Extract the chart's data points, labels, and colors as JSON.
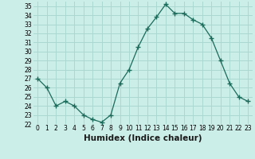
{
  "x": [
    0,
    1,
    2,
    3,
    4,
    5,
    6,
    7,
    8,
    9,
    10,
    11,
    12,
    13,
    14,
    15,
    16,
    17,
    18,
    19,
    20,
    21,
    22,
    23
  ],
  "y": [
    27,
    26,
    24,
    24.5,
    24,
    23,
    22.5,
    22.2,
    23,
    26.5,
    28,
    30.5,
    32.5,
    33.8,
    35.2,
    34.2,
    34.2,
    33.5,
    33,
    31.5,
    29,
    26.5,
    25,
    24.5
  ],
  "line_color": "#1a6b5a",
  "marker": "+",
  "marker_size": 4,
  "bg_color": "#cceee8",
  "grid_color": "#aad8d0",
  "xlabel": "Humidex (Indice chaleur)",
  "xlim": [
    -0.5,
    23.5
  ],
  "ylim": [
    22,
    35.5
  ],
  "yticks": [
    22,
    23,
    24,
    25,
    26,
    27,
    28,
    29,
    30,
    31,
    32,
    33,
    34,
    35
  ],
  "xticks": [
    0,
    1,
    2,
    3,
    4,
    5,
    6,
    7,
    8,
    9,
    10,
    11,
    12,
    13,
    14,
    15,
    16,
    17,
    18,
    19,
    20,
    21,
    22,
    23
  ],
  "tick_label_fontsize": 5.5,
  "xlabel_fontsize": 7.5
}
